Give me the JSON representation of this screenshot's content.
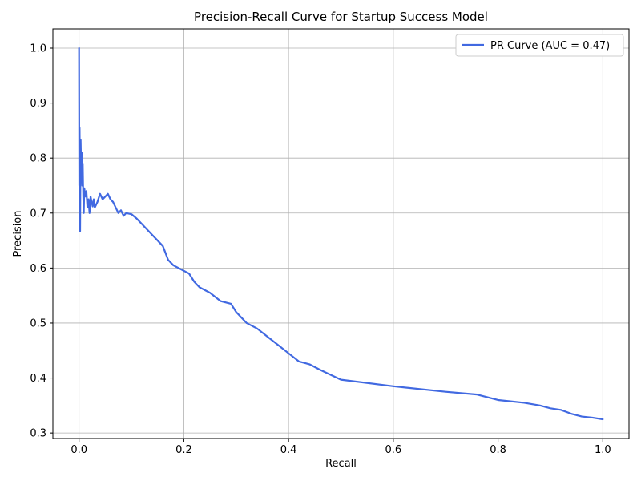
{
  "chart_data": {
    "type": "line",
    "title": "Precision-Recall Curve for Startup Success Model",
    "xlabel": "Recall",
    "ylabel": "Precision",
    "xlim": [
      -0.05,
      1.05
    ],
    "ylim": [
      0.29,
      1.035
    ],
    "x_ticks": [
      0.0,
      0.2,
      0.4,
      0.6,
      0.8,
      1.0
    ],
    "x_tick_labels": [
      "0.0",
      "0.2",
      "0.4",
      "0.6",
      "0.8",
      "1.0"
    ],
    "y_ticks": [
      0.3,
      0.4,
      0.5,
      0.6,
      0.7,
      0.8,
      0.9,
      1.0
    ],
    "y_tick_labels": [
      "0.3",
      "0.4",
      "0.5",
      "0.6",
      "0.7",
      "0.8",
      "0.9",
      "1.0"
    ],
    "grid": true,
    "legend_position": "top-right",
    "series": [
      {
        "name": "PR Curve (AUC = 0.47)",
        "color": "#4169e1",
        "x": [
          0.0,
          0.0005,
          0.001,
          0.0015,
          0.002,
          0.003,
          0.004,
          0.005,
          0.006,
          0.007,
          0.008,
          0.009,
          0.01,
          0.012,
          0.014,
          0.016,
          0.018,
          0.02,
          0.022,
          0.024,
          0.026,
          0.028,
          0.03,
          0.035,
          0.04,
          0.045,
          0.05,
          0.055,
          0.06,
          0.065,
          0.07,
          0.075,
          0.08,
          0.085,
          0.09,
          0.1,
          0.11,
          0.12,
          0.13,
          0.14,
          0.15,
          0.16,
          0.17,
          0.18,
          0.19,
          0.2,
          0.21,
          0.22,
          0.23,
          0.25,
          0.27,
          0.29,
          0.3,
          0.32,
          0.34,
          0.36,
          0.38,
          0.4,
          0.42,
          0.44,
          0.46,
          0.5,
          0.6,
          0.7,
          0.76,
          0.78,
          0.8,
          0.85,
          0.88,
          0.9,
          0.92,
          0.94,
          0.96,
          0.98,
          1.0
        ],
        "y": [
          1.0,
          0.75,
          0.855,
          0.8,
          0.667,
          0.833,
          0.78,
          0.81,
          0.75,
          0.79,
          0.73,
          0.7,
          0.745,
          0.73,
          0.74,
          0.71,
          0.725,
          0.7,
          0.73,
          0.72,
          0.712,
          0.725,
          0.71,
          0.72,
          0.735,
          0.725,
          0.73,
          0.735,
          0.725,
          0.72,
          0.71,
          0.7,
          0.705,
          0.695,
          0.7,
          0.698,
          0.69,
          0.68,
          0.67,
          0.66,
          0.65,
          0.64,
          0.615,
          0.605,
          0.6,
          0.595,
          0.59,
          0.575,
          0.565,
          0.555,
          0.54,
          0.535,
          0.52,
          0.5,
          0.49,
          0.475,
          0.46,
          0.445,
          0.43,
          0.425,
          0.415,
          0.397,
          0.385,
          0.375,
          0.37,
          0.365,
          0.36,
          0.355,
          0.35,
          0.345,
          0.342,
          0.335,
          0.33,
          0.328,
          0.325
        ]
      }
    ]
  }
}
